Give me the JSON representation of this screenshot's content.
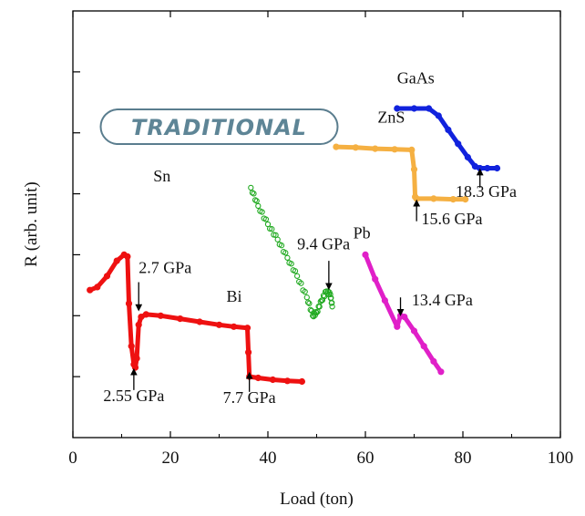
{
  "chart_data": {
    "type": "scatter",
    "title": "",
    "xlabel": "Load (ton)",
    "ylabel": "R (arb. unit)",
    "xlim": [
      0,
      100
    ],
    "ylim": [
      0,
      7
    ],
    "x_ticks": [
      "0",
      "20",
      "40",
      "60",
      "80",
      "100"
    ],
    "grid": false,
    "colors": {
      "Bi": "#ee1111",
      "Sn": "#22aa22",
      "Pb": "#e020c8",
      "ZnS": "#f5b042",
      "GaAs": "#1122dd"
    },
    "series": [
      {
        "name": "Bi",
        "marker": "filled-circle",
        "points": [
          [
            3.5,
            2.42
          ],
          [
            5,
            2.47
          ],
          [
            7,
            2.65
          ],
          [
            9,
            2.9
          ],
          [
            10.5,
            3.0
          ],
          [
            11.2,
            2.97
          ],
          [
            11.5,
            2.2
          ],
          [
            12.0,
            1.5
          ],
          [
            12.5,
            1.2
          ],
          [
            12.8,
            1.15
          ],
          [
            13.1,
            1.3
          ],
          [
            13.5,
            1.85
          ],
          [
            14.0,
            1.98
          ],
          [
            15,
            2.02
          ],
          [
            18,
            2.0
          ],
          [
            22,
            1.95
          ],
          [
            26,
            1.9
          ],
          [
            30,
            1.85
          ],
          [
            33,
            1.82
          ],
          [
            35.8,
            1.8
          ],
          [
            36.0,
            1.4
          ],
          [
            36.2,
            1.0
          ],
          [
            38,
            0.98
          ],
          [
            41,
            0.95
          ],
          [
            44,
            0.93
          ],
          [
            47,
            0.92
          ]
        ]
      },
      {
        "name": "Sn",
        "marker": "open-circle",
        "points": [
          [
            36.5,
            4.1
          ],
          [
            38,
            3.8
          ],
          [
            40,
            3.5
          ],
          [
            42,
            3.25
          ],
          [
            44,
            2.95
          ],
          [
            46,
            2.65
          ],
          [
            48,
            2.3
          ],
          [
            49.2,
            2.0
          ],
          [
            50,
            2.05
          ],
          [
            51,
            2.25
          ],
          [
            52,
            2.4
          ],
          [
            52.8,
            2.35
          ],
          [
            53.2,
            2.15
          ]
        ]
      },
      {
        "name": "Pb",
        "marker": "filled-circle",
        "points": [
          [
            60,
            3.0
          ],
          [
            62,
            2.6
          ],
          [
            64,
            2.25
          ],
          [
            66.5,
            1.82
          ],
          [
            67.2,
            2.0
          ],
          [
            68,
            1.98
          ],
          [
            70,
            1.75
          ],
          [
            72,
            1.5
          ],
          [
            74,
            1.25
          ],
          [
            75.5,
            1.08
          ]
        ]
      },
      {
        "name": "ZnS",
        "marker": "filled-circle",
        "points": [
          [
            54,
            4.77
          ],
          [
            58,
            4.76
          ],
          [
            62,
            4.74
          ],
          [
            66,
            4.73
          ],
          [
            69.5,
            4.72
          ],
          [
            70.0,
            4.4
          ],
          [
            70.2,
            3.95
          ],
          [
            70.5,
            3.92
          ],
          [
            74,
            3.92
          ],
          [
            78,
            3.91
          ],
          [
            80.5,
            3.91
          ]
        ]
      },
      {
        "name": "GaAs",
        "marker": "filled-circle",
        "points": [
          [
            66.5,
            5.4
          ],
          [
            70,
            5.4
          ],
          [
            73,
            5.4
          ],
          [
            75,
            5.28
          ],
          [
            77,
            5.05
          ],
          [
            79,
            4.82
          ],
          [
            81,
            4.6
          ],
          [
            82.5,
            4.45
          ],
          [
            83.5,
            4.42
          ],
          [
            85,
            4.42
          ],
          [
            87,
            4.42
          ]
        ]
      }
    ],
    "annotations": [
      {
        "text": "TRADITIONAL",
        "x": 30,
        "y": 5.1,
        "style": "rounded-box"
      },
      {
        "text": "Bi",
        "x": 31.5,
        "y": 2.23
      },
      {
        "text": "Sn",
        "x": 16.5,
        "y": 4.2
      },
      {
        "text": "Pb",
        "x": 57.5,
        "y": 3.27
      },
      {
        "text": "ZnS",
        "x": 62.5,
        "y": 5.17
      },
      {
        "text": "GaAs",
        "x": 66.5,
        "y": 5.81
      },
      {
        "text": "2.7 GPa",
        "x": 13.5,
        "y": 2.7,
        "arrow": {
          "x": 13.5,
          "from": 2.55,
          "to": 2.13
        }
      },
      {
        "text": "2.55 GPa",
        "x": 12.5,
        "y": 0.6,
        "arrow": {
          "x": 12.5,
          "from": 0.78,
          "to": 1.08
        }
      },
      {
        "text": "7.7 GPa",
        "x": 36.2,
        "y": 0.57,
        "arrow": {
          "x": 36.2,
          "from": 0.75,
          "to": 1.02
        }
      },
      {
        "text": "9.4 GPa",
        "x": 46,
        "y": 3.09,
        "arrow": {
          "x": 52.5,
          "from": 2.9,
          "to": 2.48
        }
      },
      {
        "text": "13.4 GPa",
        "x": 69.5,
        "y": 2.17,
        "arrow": {
          "x": 67.2,
          "from": 2.3,
          "to": 2.05
        }
      },
      {
        "text": "15.6 GPa",
        "x": 71.5,
        "y": 3.5,
        "arrow": {
          "x": 70.5,
          "from": 3.55,
          "to": 3.85
        }
      },
      {
        "text": "18.3 GPa",
        "x": 78.5,
        "y": 3.95,
        "arrow": {
          "x": 83.5,
          "from": 4.1,
          "to": 4.36
        }
      }
    ]
  }
}
